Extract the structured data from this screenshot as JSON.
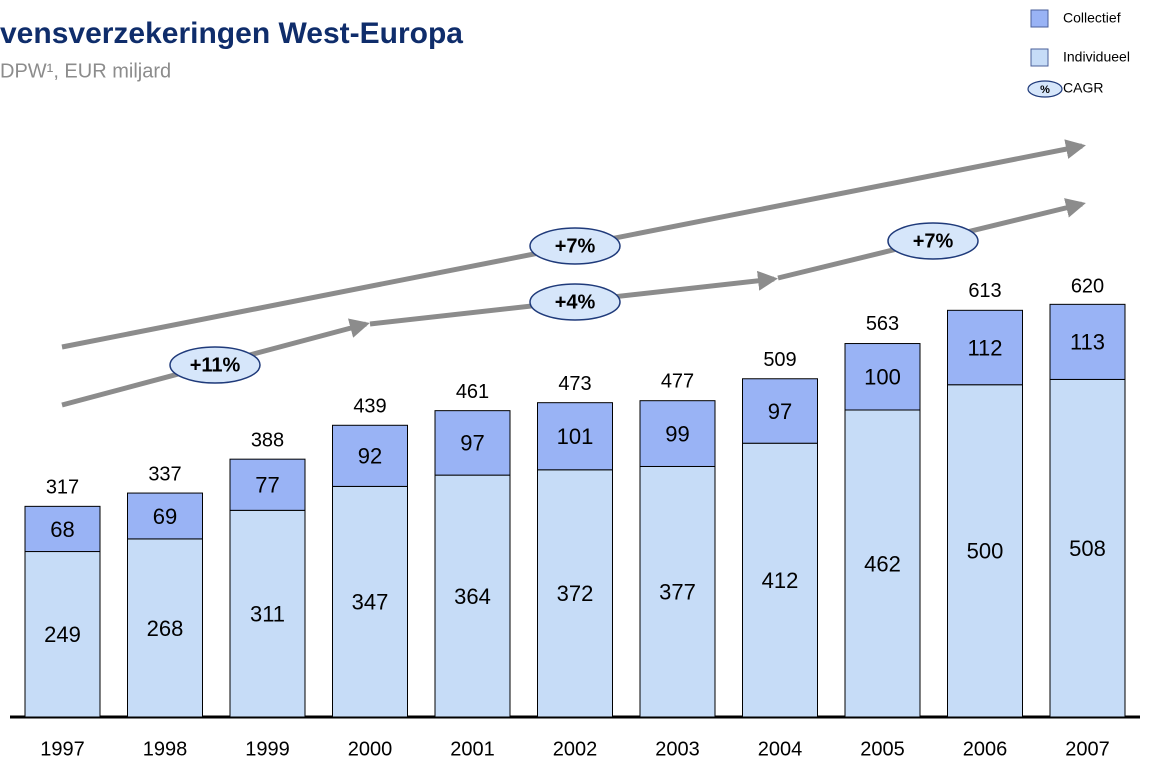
{
  "chart_data": {
    "type": "stacked_bar",
    "title": "vensverzekeringen West-Europa",
    "subtitle": "DPW¹, EUR miljard",
    "categories": [
      "1997",
      "1998",
      "1999",
      "2000",
      "2001",
      "2002",
      "2003",
      "2004",
      "2005",
      "2006",
      "2007"
    ],
    "series": [
      {
        "name": "Individueel",
        "color": "#c6dcf7",
        "values": [
          249,
          268,
          311,
          347,
          364,
          372,
          377,
          412,
          462,
          500,
          508
        ]
      },
      {
        "name": "Collectief",
        "color": "#99b3f5",
        "values": [
          68,
          69,
          77,
          92,
          97,
          101,
          99,
          97,
          100,
          112,
          113
        ]
      }
    ],
    "totals": [
      317,
      337,
      388,
      439,
      461,
      473,
      477,
      509,
      563,
      613,
      620
    ],
    "annotations": [
      "+11%",
      "+7%",
      "+4%",
      "+7%"
    ],
    "cagr_legend": {
      "symbol": "%",
      "label": "CAGR"
    }
  }
}
